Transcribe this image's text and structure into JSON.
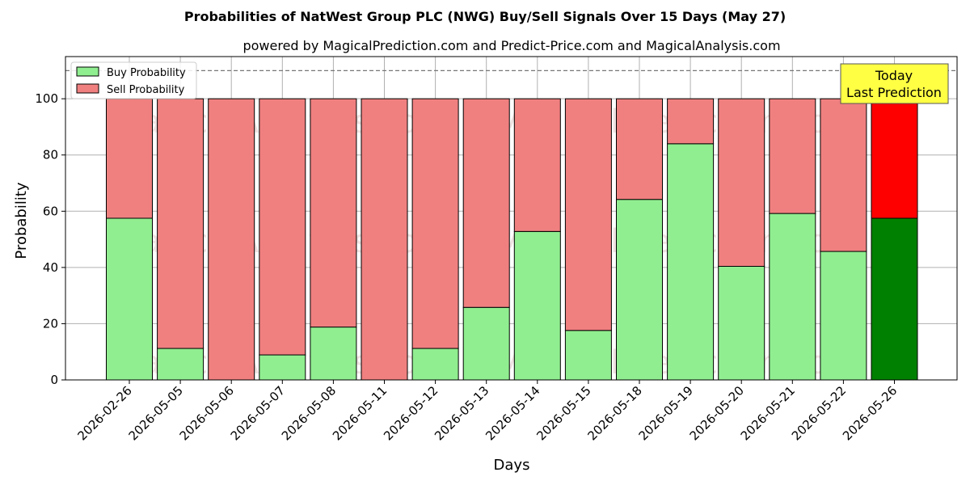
{
  "chart_data": {
    "type": "bar",
    "stacked": true,
    "title": "Probabilities of NatWest Group PLC (NWG) Buy/Sell Signals Over 15 Days (May 27)",
    "subtitle": "powered by MagicalPrediction.com and Predict-Price.com and MagicalAnalysis.com",
    "xlabel": "Days",
    "ylabel": "Probability",
    "ylim": [
      0,
      115
    ],
    "yticks": [
      0,
      20,
      40,
      60,
      80,
      100
    ],
    "reference_line": 110,
    "grid": true,
    "legend_position": "top-left",
    "categories": [
      "2026-02-26",
      "2026-05-05",
      "2026-05-06",
      "2026-05-07",
      "2026-05-08",
      "2026-05-11",
      "2026-05-12",
      "2026-05-13",
      "2026-05-14",
      "2026-05-15",
      "2026-05-18",
      "2026-05-19",
      "2026-05-20",
      "2026-05-21",
      "2026-05-22",
      "2026-05-26"
    ],
    "series": [
      {
        "name": "Buy Probability",
        "color": "#90ee90",
        "highlight_color": "#008000",
        "values": [
          57.5,
          11.2,
          0,
          8.9,
          18.8,
          0,
          11.2,
          25.8,
          52.8,
          17.6,
          64.2,
          84.0,
          40.4,
          59.2,
          45.7,
          57.5
        ]
      },
      {
        "name": "Sell Probability",
        "color": "#f08080",
        "highlight_color": "#ff0000",
        "values": [
          42.5,
          88.8,
          100,
          91.1,
          81.2,
          100,
          88.8,
          74.2,
          47.2,
          82.4,
          35.8,
          16.0,
          59.6,
          40.8,
          54.3,
          42.5
        ]
      }
    ],
    "highlight_index": 15,
    "annotation": {
      "line1": "Today",
      "line2": "Last Prediction",
      "bg": "#ffff44"
    },
    "watermarks": [
      "MagicalAnalysis.com",
      "MagicalPrediction.com"
    ]
  }
}
